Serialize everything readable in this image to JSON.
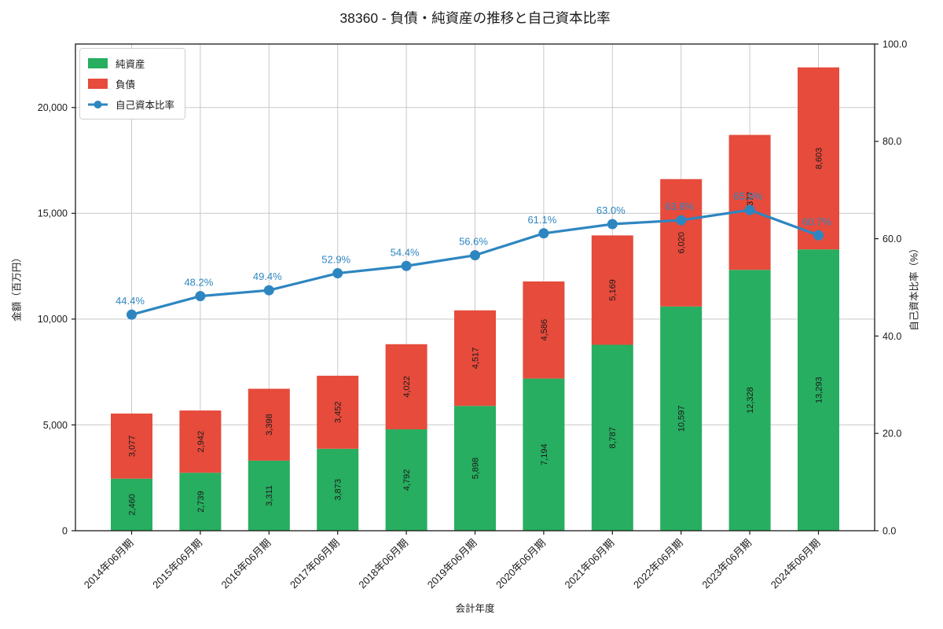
{
  "chart_data": {
    "type": "bar",
    "stacked": true,
    "title": "38360 - 負債・純資産の推移と自己資本比率",
    "xlabel": "会計年度",
    "ylabel_left": "金額（百万円）",
    "ylabel_right": "自己資本比率（%）",
    "categories": [
      "2014年06月期",
      "2015年06月期",
      "2016年06月期",
      "2017年06月期",
      "2018年06月期",
      "2019年06月期",
      "2020年06月期",
      "2021年06月期",
      "2022年06月期",
      "2023年06月期",
      "2024年06月期"
    ],
    "series": [
      {
        "name": "純資産",
        "role": "bar",
        "color": "#27ae60",
        "values": [
          2460,
          2739,
          3311,
          3873,
          4792,
          5898,
          7194,
          8787,
          10597,
          12328,
          13293
        ]
      },
      {
        "name": "負債",
        "role": "bar",
        "color": "#e64b3c",
        "values": [
          3077,
          2942,
          3398,
          3452,
          4022,
          4517,
          4586,
          5169,
          6020,
          6377,
          8603
        ]
      },
      {
        "name": "自己資本比率",
        "role": "line",
        "axis": "right",
        "unit": "%",
        "color": "#2e86c1",
        "values": [
          44.4,
          48.2,
          49.4,
          52.9,
          54.4,
          56.6,
          61.1,
          63.0,
          63.8,
          65.9,
          60.7
        ]
      }
    ],
    "ylim_left": [
      0,
      23000
    ],
    "ylim_right": [
      0,
      100
    ],
    "yticks_left": [
      0,
      5000,
      10000,
      15000,
      20000
    ],
    "yticks_right": [
      0,
      20,
      40,
      60,
      80,
      100
    ],
    "grid": true,
    "grid_color": "#c9c9c9",
    "spine_color": "#1a1a1a",
    "legend_position": "upper-left"
  }
}
